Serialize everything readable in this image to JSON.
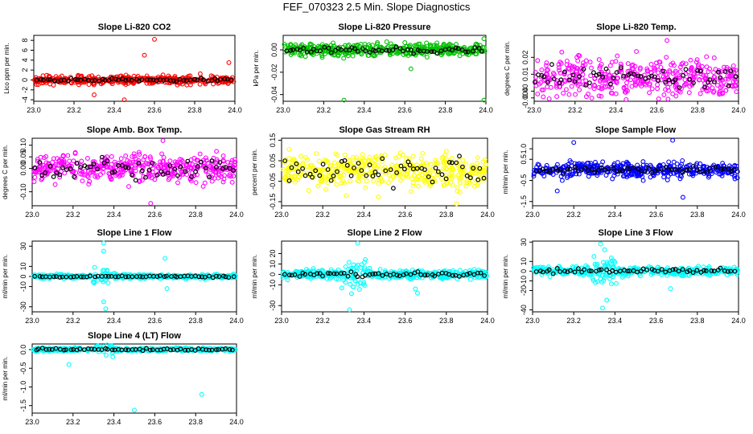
{
  "page_title": "FEF_070323  2.5 Min. Slope Diagnostics",
  "colors": {
    "black": "#000000",
    "red": "#ff0000",
    "green": "#00c000",
    "magenta": "#ff00ff",
    "yellow": "#ffff00",
    "blue": "#0000ff",
    "cyan": "#00ffff"
  },
  "chart_data": [
    {
      "id": "co2",
      "type": "scatter",
      "title": "Slope Li-820 CO2",
      "ylabel": "Lico ppm per min.",
      "xlim": [
        23.0,
        24.0
      ],
      "ylim": [
        -4.3,
        9
      ],
      "xticks": [
        23.0,
        23.2,
        23.4,
        23.6,
        23.8,
        24.0
      ],
      "xtick_labels": [
        "23.0",
        "23.2",
        "23.4",
        "23.6",
        "23.8",
        "24.0"
      ],
      "yticks": [
        -4,
        -2,
        0,
        2,
        4,
        6,
        8
      ],
      "ytick_labels": [
        "-4",
        "-2",
        "0",
        "2",
        "4",
        "6",
        "8"
      ],
      "color": "red",
      "center": 0,
      "spread": 0.6,
      "outliers": [
        [
          23.6,
          8.2
        ],
        [
          23.97,
          3.5
        ],
        [
          23.3,
          -3
        ],
        [
          23.45,
          -4
        ],
        [
          23.55,
          5
        ]
      ],
      "black_spread": 0.25
    },
    {
      "id": "press",
      "type": "scatter",
      "title": "Slope Li-820 Pressure",
      "ylabel": "kPa per min.",
      "xlim": [
        23.0,
        24.0
      ],
      "ylim": [
        -0.046,
        0.013
      ],
      "xticks": [
        23.0,
        23.2,
        23.4,
        23.6,
        23.8,
        24.0
      ],
      "xtick_labels": [
        "23.0",
        "23.2",
        "23.4",
        "23.6",
        "23.8",
        "24.0"
      ],
      "yticks": [
        -0.04,
        -0.02,
        0.0
      ],
      "ytick_labels": [
        "-0.04",
        "-0.02",
        "0.00"
      ],
      "color": "green",
      "center": 0,
      "spread": 0.004,
      "outliers": [
        [
          23.3,
          -0.045
        ],
        [
          23.63,
          -0.017
        ],
        [
          23.99,
          -0.045
        ],
        [
          23.99,
          0.01
        ]
      ],
      "black_spread": 0.002
    },
    {
      "id": "temp",
      "type": "scatter",
      "title": "Slope Li-820 Temp.",
      "ylabel": "degrees C per min.",
      "xlim": [
        23.0,
        24.0
      ],
      "ylim": [
        -0.006,
        0.033
      ],
      "xticks": [
        23.0,
        23.2,
        23.4,
        23.6,
        23.8,
        24.0
      ],
      "xtick_labels": [
        "23.0",
        "23.2",
        "23.4",
        "23.6",
        "23.8",
        "24.0"
      ],
      "yticks": [
        -0.004,
        0.0,
        0.01,
        0.02
      ],
      "ytick_labels": [
        "-0.004",
        "0.00",
        "0.01",
        "0.02"
      ],
      "color": "magenta",
      "center": 0.008,
      "spread": 0.008,
      "outliers": [
        [
          23.45,
          -0.005
        ],
        [
          23.65,
          0.03
        ]
      ],
      "black_spread": 0.004
    },
    {
      "id": "box",
      "type": "scatter",
      "title": "Slope Amb. Box Temp.",
      "ylabel": "degrees C per min.",
      "xlim": [
        23.0,
        24.0
      ],
      "ylim": [
        -0.16,
        0.13
      ],
      "xticks": [
        23.0,
        23.2,
        23.4,
        23.6,
        23.8,
        24.0
      ],
      "xtick_labels": [
        "23.0",
        "23.2",
        "23.4",
        "23.6",
        "23.8",
        "24.0"
      ],
      "yticks": [
        -0.1,
        0.0,
        0.05,
        0.1
      ],
      "ytick_labels": [
        "-0.10",
        "0.00",
        "0.05",
        "0.10"
      ],
      "color": "magenta",
      "center": 0,
      "spread": 0.04,
      "outliers": [
        [
          23.58,
          -0.15
        ],
        [
          23.64,
          0.12
        ]
      ],
      "black_spread": 0.03
    },
    {
      "id": "rh",
      "type": "scatter",
      "title": "Slope Gas Stream RH",
      "ylabel": "percent per min.",
      "xlim": [
        23.0,
        24.0
      ],
      "ylim": [
        -0.17,
        0.16
      ],
      "xticks": [
        23.0,
        23.2,
        23.4,
        23.6,
        23.8,
        24.0
      ],
      "xtick_labels": [
        "23.0",
        "23.2",
        "23.4",
        "23.6",
        "23.8",
        "24.0"
      ],
      "yticks": [
        -0.15,
        -0.05,
        0.05,
        0.15
      ],
      "ytick_labels": [
        "-0.15",
        "-0.05",
        "0.05",
        "0.15"
      ],
      "color": "yellow",
      "center": 0,
      "spread": 0.06,
      "outliers": [
        [
          23.85,
          -0.16
        ]
      ],
      "black_spread": 0.05
    },
    {
      "id": "flow",
      "type": "scatter",
      "title": "Slope Sample Flow",
      "ylabel": "ml/min per min.",
      "xlim": [
        23.0,
        24.0
      ],
      "ylim": [
        -1.7,
        1.5
      ],
      "xticks": [
        23.0,
        23.2,
        23.4,
        23.6,
        23.8,
        24.0
      ],
      "xtick_labels": [
        "23.0",
        "23.2",
        "23.4",
        "23.6",
        "23.8",
        "24.0"
      ],
      "yticks": [
        -1.5,
        -0.5,
        0.5,
        1.0
      ],
      "ytick_labels": [
        "-1.5",
        "-0.5",
        "0.5",
        "1.0"
      ],
      "color": "blue",
      "center": 0,
      "spread": 0.25,
      "outliers": [
        [
          23.2,
          1.3
        ],
        [
          23.68,
          1.4
        ],
        [
          23.12,
          -1.0
        ],
        [
          23.73,
          -1.3
        ]
      ],
      "black_spread": 0.1
    },
    {
      "id": "line1",
      "type": "scatter",
      "title": "Slope Line 1 Flow",
      "ylabel": "ml/min per min.",
      "xlim": [
        23.0,
        24.0
      ],
      "ylim": [
        -35,
        35
      ],
      "xticks": [
        23.0,
        23.2,
        23.4,
        23.6,
        23.8,
        24.0
      ],
      "xtick_labels": [
        "23.0",
        "23.2",
        "23.4",
        "23.6",
        "23.8",
        "24.0"
      ],
      "yticks": [
        -30,
        -10,
        0,
        10,
        30
      ],
      "ytick_labels": [
        "-30",
        "-10",
        "0",
        "10",
        "30"
      ],
      "color": "cyan",
      "center": 0,
      "spread": 1.5,
      "outliers": [
        [
          23.35,
          33
        ],
        [
          23.35,
          25
        ],
        [
          23.35,
          -25
        ],
        [
          23.36,
          -32
        ],
        [
          23.65,
          18
        ],
        [
          23.66,
          -12
        ]
      ],
      "black_spread": 0.5
    },
    {
      "id": "line2",
      "type": "scatter",
      "title": "Slope Line 2 Flow",
      "ylabel": "ml/min per min.",
      "xlim": [
        23.0,
        24.0
      ],
      "ylim": [
        -36,
        32
      ],
      "xticks": [
        23.0,
        23.2,
        23.4,
        23.6,
        23.8,
        24.0
      ],
      "xtick_labels": [
        "23.0",
        "23.2",
        "23.4",
        "23.6",
        "23.8",
        "24.0"
      ],
      "yticks": [
        -30,
        -10,
        0,
        10,
        20
      ],
      "ytick_labels": [
        "-30",
        "-10",
        "0",
        "10",
        "20"
      ],
      "color": "cyan",
      "center": 0,
      "spread": 3,
      "outliers": [
        [
          23.37,
          30
        ],
        [
          23.33,
          -34
        ],
        [
          23.65,
          -14
        ],
        [
          23.66,
          -18
        ]
      ],
      "black_spread": 1.5
    },
    {
      "id": "line3",
      "type": "scatter",
      "title": "Slope Line 3 Flow",
      "ylabel": "ml/min per min.",
      "xlim": [
        23.0,
        24.0
      ],
      "ylim": [
        -42,
        31
      ],
      "xticks": [
        23.0,
        23.2,
        23.4,
        23.6,
        23.8,
        24.0
      ],
      "xtick_labels": [
        "23.0",
        "23.2",
        "23.4",
        "23.6",
        "23.8",
        "24.0"
      ],
      "yticks": [
        -40,
        -20,
        -10,
        0,
        10,
        30
      ],
      "ytick_labels": [
        "-40",
        "-20",
        "-10",
        "0",
        "10",
        "30"
      ],
      "color": "cyan",
      "center": 0,
      "spread": 3,
      "outliers": [
        [
          23.33,
          28
        ],
        [
          23.35,
          22
        ],
        [
          23.34,
          -38
        ],
        [
          23.36,
          -30
        ],
        [
          23.67,
          -18
        ]
      ],
      "black_spread": 2
    },
    {
      "id": "line4",
      "type": "scatter",
      "title": "Slope Line 4 (LT) Flow",
      "ylabel": "ml/min per min.",
      "xlim": [
        23.0,
        24.0
      ],
      "ylim": [
        -1.7,
        0.15
      ],
      "xticks": [
        23.0,
        23.2,
        23.4,
        23.6,
        23.8,
        24.0
      ],
      "xtick_labels": [
        "23.0",
        "23.2",
        "23.4",
        "23.6",
        "23.8",
        "24.0"
      ],
      "yticks": [
        -1.5,
        -1.0,
        -0.5,
        0.0
      ],
      "ytick_labels": [
        "-1.5",
        "-1.0",
        "-0.5",
        "0.0"
      ],
      "color": "cyan",
      "center": 0,
      "spread": 0.03,
      "outliers": [
        [
          23.5,
          -1.62
        ],
        [
          23.83,
          -1.2
        ],
        [
          23.18,
          -0.4
        ]
      ],
      "black_spread": 0.02
    }
  ]
}
